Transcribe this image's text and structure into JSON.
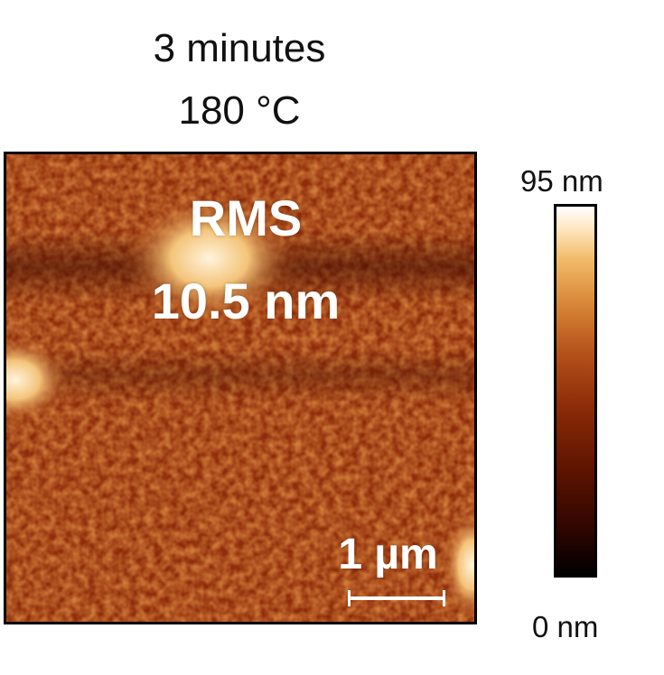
{
  "title": {
    "duration": "3 minutes",
    "temperature": "180 °C"
  },
  "image": {
    "description_icon": "afm-height-map",
    "rms_label": "RMS",
    "rms_value": "10.5 nm",
    "scale_bar_label": "1 µm"
  },
  "colorbar": {
    "max_label": "95 nm",
    "min_label": "0 nm",
    "colors": [
      "#000000",
      "#5c1300",
      "#b4501a",
      "#f2bc6c",
      "#ffffff"
    ]
  }
}
